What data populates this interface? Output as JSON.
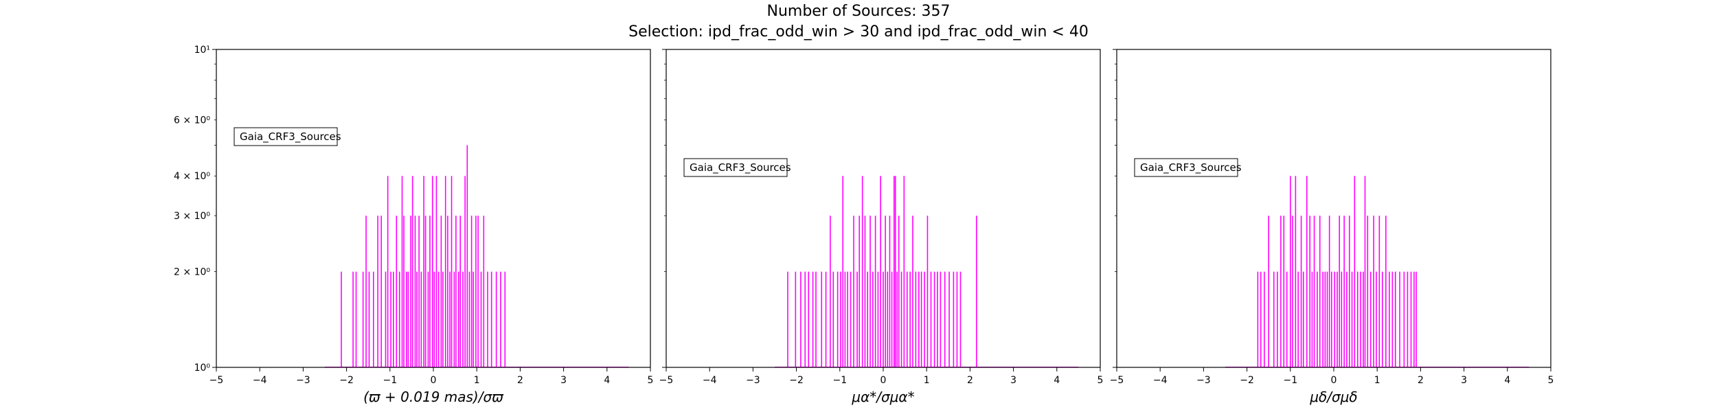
{
  "title": "Number of Sources: 357",
  "subtitle": "Selection: ipd_frac_odd_win > 30 and ipd_frac_odd_win < 40",
  "color": "#ff00ff",
  "chart_data": [
    {
      "type": "bar",
      "legend": "Gaia_CRF3_Sources",
      "legend_position": "upper-left",
      "xlabel": "(ϖ + 0.019 mas)/σϖ",
      "xlim": [
        -5,
        5
      ],
      "ylim": [
        1,
        10
      ],
      "yscale": "log",
      "xticks": [
        "−5",
        "−4",
        "−3",
        "−2",
        "−1",
        "0",
        "1",
        "2",
        "3",
        "4",
        "5"
      ],
      "yticks": [
        {
          "value": 1,
          "label": "10⁰"
        },
        {
          "value": 2,
          "label": "2 × 10⁰"
        },
        {
          "value": 3,
          "label": "3 × 10⁰"
        },
        {
          "value": 4,
          "label": "4 × 10⁰"
        },
        {
          "value": 6,
          "label": "6 × 10⁰"
        },
        {
          "value": 10,
          "label": "10¹"
        }
      ],
      "x": [
        -2.12,
        -1.85,
        -1.78,
        -1.62,
        -1.55,
        -1.48,
        -1.38,
        -1.28,
        -1.2,
        -1.1,
        -1.05,
        -0.98,
        -0.92,
        -0.85,
        -0.78,
        -0.72,
        -0.68,
        -0.62,
        -0.58,
        -0.52,
        -0.48,
        -0.42,
        -0.38,
        -0.33,
        -0.28,
        -0.22,
        -0.18,
        -0.12,
        -0.08,
        -0.02,
        0.02,
        0.07,
        0.12,
        0.18,
        0.22,
        0.28,
        0.33,
        0.38,
        0.42,
        0.48,
        0.52,
        0.58,
        0.62,
        0.68,
        0.73,
        0.78,
        0.83,
        0.88,
        0.92,
        0.98,
        1.03,
        1.1,
        1.16,
        1.25,
        1.34,
        1.45,
        1.55,
        1.65
      ],
      "values": [
        2,
        2,
        2,
        2,
        3,
        2,
        2,
        3,
        3,
        2,
        4,
        2,
        2,
        3,
        2,
        4,
        3,
        2,
        2,
        3,
        4,
        3,
        2,
        3,
        2,
        4,
        3,
        2,
        3,
        4,
        2,
        4,
        2,
        3,
        2,
        4,
        3,
        2,
        4,
        2,
        3,
        2,
        3,
        2,
        4,
        5,
        2,
        3,
        2,
        3,
        3,
        2,
        3,
        2,
        2,
        2,
        2,
        2
      ]
    },
    {
      "type": "bar",
      "legend": "Gaia_CRF3_Sources",
      "legend_position": "upper-left",
      "xlabel": "μα*/σμα*",
      "xlim": [
        -5,
        5
      ],
      "ylim": [
        1,
        10
      ],
      "yscale": "log",
      "xticks": [
        "−5",
        "−4",
        "−3",
        "−2",
        "−1",
        "0",
        "1",
        "2",
        "3",
        "4",
        "5"
      ],
      "x": [
        -2.2,
        -2.02,
        -1.9,
        -1.8,
        -1.72,
        -1.62,
        -1.55,
        -1.42,
        -1.32,
        -1.22,
        -1.15,
        -1.05,
        -0.98,
        -0.93,
        -0.88,
        -0.82,
        -0.75,
        -0.68,
        -0.6,
        -0.55,
        -0.48,
        -0.42,
        -0.36,
        -0.3,
        -0.24,
        -0.18,
        -0.12,
        -0.06,
        0.0,
        0.05,
        0.1,
        0.15,
        0.2,
        0.25,
        0.28,
        0.32,
        0.36,
        0.42,
        0.48,
        0.55,
        0.62,
        0.68,
        0.75,
        0.82,
        0.88,
        0.95,
        1.02,
        1.1,
        1.18,
        1.25,
        1.32,
        1.42,
        1.52,
        1.62,
        1.7,
        1.78,
        2.15
      ],
      "values": [
        2,
        2,
        2,
        2,
        2,
        2,
        2,
        2,
        2,
        3,
        2,
        2,
        2,
        4,
        2,
        2,
        2,
        3,
        2,
        3,
        4,
        3,
        2,
        3,
        2,
        3,
        2,
        4,
        2,
        3,
        2,
        3,
        2,
        4,
        4,
        2,
        3,
        2,
        4,
        2,
        2,
        3,
        2,
        2,
        2,
        2,
        3,
        2,
        2,
        2,
        2,
        2,
        2,
        2,
        2,
        2,
        3
      ]
    },
    {
      "type": "bar",
      "legend": "Gaia_CRF3_Sources",
      "legend_position": "upper-left",
      "xlabel": "μδ/σμδ",
      "xlim": [
        -5,
        5
      ],
      "ylim": [
        1,
        10
      ],
      "yscale": "log",
      "xticks": [
        "−5",
        "−4",
        "−3",
        "−2",
        "−1",
        "0",
        "1",
        "2",
        "3",
        "4",
        "5"
      ],
      "x": [
        -1.75,
        -1.68,
        -1.6,
        -1.5,
        -1.38,
        -1.3,
        -1.22,
        -1.15,
        -1.08,
        -1.0,
        -0.95,
        -0.88,
        -0.82,
        -0.75,
        -0.7,
        -0.62,
        -0.55,
        -0.5,
        -0.45,
        -0.38,
        -0.32,
        -0.25,
        -0.2,
        -0.15,
        -0.1,
        -0.05,
        0.02,
        0.08,
        0.13,
        0.18,
        0.24,
        0.3,
        0.36,
        0.42,
        0.48,
        0.55,
        0.62,
        0.68,
        0.72,
        0.78,
        0.85,
        0.92,
        0.98,
        1.05,
        1.12,
        1.2,
        1.28,
        1.35,
        1.42,
        1.52,
        1.62,
        1.7,
        1.78,
        1.85,
        1.9
      ],
      "values": [
        2,
        2,
        2,
        3,
        2,
        2,
        3,
        3,
        2,
        4,
        3,
        4,
        2,
        3,
        2,
        4,
        3,
        2,
        3,
        2,
        3,
        2,
        2,
        2,
        3,
        2,
        2,
        2,
        3,
        2,
        3,
        2,
        3,
        2,
        4,
        2,
        2,
        2,
        4,
        3,
        2,
        3,
        2,
        3,
        2,
        3,
        2,
        2,
        2,
        2,
        2,
        2,
        2,
        2,
        2
      ]
    }
  ]
}
